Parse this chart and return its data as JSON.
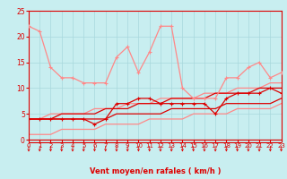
{
  "x": [
    0,
    1,
    2,
    3,
    4,
    5,
    6,
    7,
    8,
    9,
    10,
    11,
    12,
    13,
    14,
    15,
    16,
    17,
    18,
    19,
    20,
    21,
    22,
    23
  ],
  "wind_avg": [
    4,
    4,
    4,
    4,
    4,
    4,
    3,
    4,
    7,
    7,
    8,
    8,
    7,
    7,
    7,
    7,
    7,
    5,
    8,
    9,
    9,
    9,
    10,
    9
  ],
  "wind_gust": [
    22,
    21,
    14,
    12,
    12,
    11,
    11,
    11,
    16,
    18,
    13,
    17,
    22,
    22,
    10,
    8,
    8,
    8,
    12,
    12,
    14,
    15,
    12,
    13
  ],
  "trend_upper": [
    4,
    4,
    4,
    5,
    5,
    5,
    5,
    6,
    6,
    6,
    7,
    7,
    7,
    8,
    8,
    8,
    8,
    9,
    9,
    9,
    9,
    10,
    10,
    10
  ],
  "trend_lower": [
    4,
    4,
    4,
    4,
    4,
    4,
    4,
    4,
    5,
    5,
    5,
    5,
    5,
    6,
    6,
    6,
    6,
    6,
    7,
    7,
    7,
    7,
    7,
    8
  ],
  "reg_upper": [
    4,
    4,
    5,
    5,
    5,
    5,
    6,
    6,
    6,
    7,
    7,
    7,
    8,
    8,
    8,
    8,
    9,
    9,
    9,
    10,
    10,
    10,
    11,
    11
  ],
  "reg_lower": [
    1,
    1,
    1,
    2,
    2,
    2,
    2,
    3,
    3,
    3,
    3,
    4,
    4,
    4,
    4,
    5,
    5,
    5,
    5,
    6,
    6,
    6,
    6,
    7
  ],
  "bg_color": "#c8eef0",
  "grid_color": "#a8d8dc",
  "dark_red": "#dd0000",
  "light_red": "#ff8888",
  "xlabel": "Vent moyen/en rafales ( km/h )",
  "xlim": [
    0,
    23
  ],
  "ylim": [
    0,
    25
  ],
  "yticks": [
    0,
    5,
    10,
    15,
    20,
    25
  ],
  "xticks": [
    0,
    1,
    2,
    3,
    4,
    5,
    6,
    7,
    8,
    9,
    10,
    11,
    12,
    13,
    14,
    15,
    16,
    17,
    18,
    19,
    20,
    21,
    22,
    23
  ]
}
